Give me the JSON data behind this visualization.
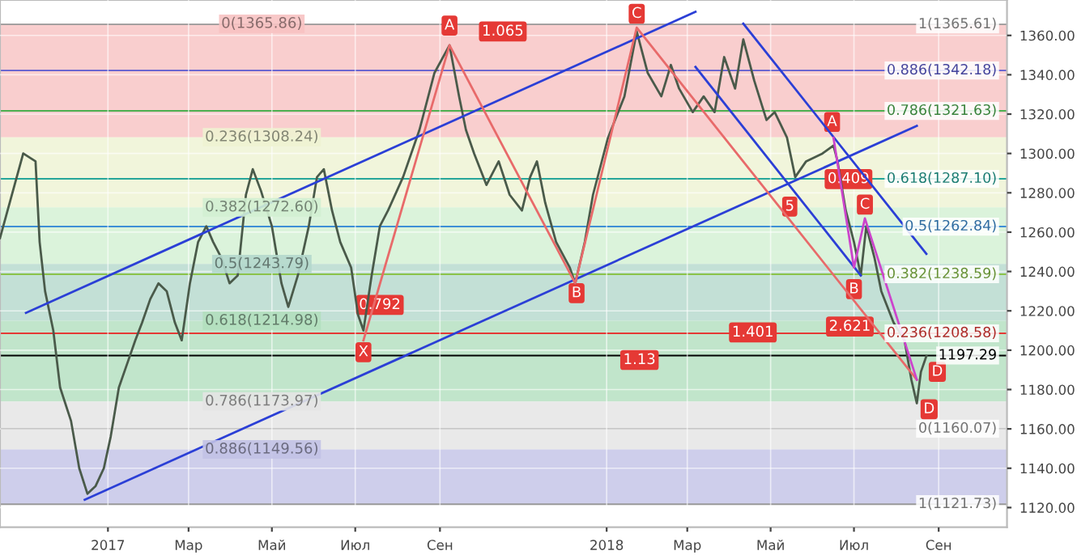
{
  "chart_data": {
    "type": "line",
    "series": [
      {
        "color": "#4a5a4a",
        "x": [
          "2016-10-14",
          "2016-10-31",
          "2016-11-09",
          "2016-11-12",
          "2016-11-16",
          "2016-11-22",
          "2016-11-27",
          "2016-12-05",
          "2016-12-11",
          "2016-12-17",
          "2016-12-23",
          "2016-12-29",
          "2017-01-03",
          "2017-01-09",
          "2017-01-15",
          "2017-01-21",
          "2017-01-26",
          "2017-02-01",
          "2017-02-07",
          "2017-02-13",
          "2017-02-19",
          "2017-02-24",
          "2017-03-02",
          "2017-03-08",
          "2017-03-14",
          "2017-03-19",
          "2017-03-25",
          "2017-03-31",
          "2017-04-06",
          "2017-04-12",
          "2017-04-17",
          "2017-04-23",
          "2017-05-01",
          "2017-05-08",
          "2017-05-13",
          "2017-05-20",
          "2017-05-28",
          "2017-06-03",
          "2017-06-08",
          "2017-06-14",
          "2017-06-20",
          "2017-06-28",
          "2017-07-03",
          "2017-07-07",
          "2017-07-13",
          "2017-07-19",
          "2017-07-25",
          "2017-08-05",
          "2017-08-17",
          "2017-08-28",
          "2017-09-08",
          "2017-09-15",
          "2017-09-20",
          "2017-09-26",
          "2017-10-05",
          "2017-10-14",
          "2017-10-22",
          "2017-10-31",
          "2017-11-06",
          "2017-11-11",
          "2017-11-17",
          "2017-11-25",
          "2017-12-05",
          "2017-12-09",
          "2017-12-16",
          "2017-12-22",
          "2018-01-02",
          "2018-01-14",
          "2018-01-23",
          "2018-01-31",
          "2018-02-10",
          "2018-02-17",
          "2018-02-23",
          "2018-03-05",
          "2018-03-13",
          "2018-03-21",
          "2018-03-28",
          "2018-04-05",
          "2018-04-11",
          "2018-04-19",
          "2018-04-28",
          "2018-05-04",
          "2018-05-13",
          "2018-05-19",
          "2018-05-27",
          "2018-06-08",
          "2018-06-16",
          "2018-06-19",
          "2018-06-25",
          "2018-07-01",
          "2018-07-06",
          "2018-07-10",
          "2018-07-16",
          "2018-07-21",
          "2018-07-30",
          "2018-08-07",
          "2018-08-12",
          "2018-08-16",
          "2018-08-19",
          "2018-08-23"
        ],
        "values": [
          1257,
          1300,
          1296,
          1255,
          1230,
          1210,
          1181,
          1164,
          1140,
          1127,
          1131,
          1140,
          1156,
          1181,
          1193,
          1205,
          1214,
          1226,
          1234,
          1230,
          1214,
          1205,
          1234,
          1255,
          1263,
          1255,
          1247,
          1234,
          1238,
          1279,
          1292,
          1281,
          1263,
          1234,
          1222,
          1238,
          1263,
          1288,
          1292,
          1271,
          1255,
          1242,
          1218,
          1210,
          1238,
          1263,
          1271,
          1288,
          1312,
          1341,
          1355,
          1329,
          1312,
          1300,
          1284,
          1296,
          1279,
          1271,
          1288,
          1296,
          1275,
          1255,
          1242,
          1234,
          1255,
          1279,
          1308,
          1329,
          1362,
          1341,
          1329,
          1345,
          1333,
          1321,
          1329,
          1321,
          1349,
          1333,
          1358,
          1337,
          1317,
          1321,
          1308,
          1288,
          1296,
          1300,
          1304,
          1296,
          1271,
          1255,
          1238,
          1263,
          1247,
          1230,
          1214,
          1205,
          1185,
          1173,
          1189,
          1197
        ]
      },
      {
        "color": "#2b3fd6",
        "x": [
          "2016-11-02",
          "2018-03-07"
        ],
        "values": [
          1219,
          1372
        ]
      },
      {
        "color": "#2b3fd6",
        "x": [
          "2016-12-15",
          "2018-08-16"
        ],
        "values": [
          1124,
          1314
        ]
      },
      {
        "color": "#2b3fd6",
        "x": [
          "2018-04-11",
          "2018-08-23"
        ],
        "values": [
          1366,
          1249
        ]
      },
      {
        "color": "#2b3fd6",
        "x": [
          "2018-03-07",
          "2018-07-06"
        ],
        "values": [
          1344,
          1238
        ]
      },
      {
        "color": "#e86a6a",
        "x": [
          "2017-07-07",
          "2017-09-08",
          "2017-12-09",
          "2018-01-23",
          "2018-08-16"
        ],
        "values": [
          1205,
          1355,
          1234,
          1364,
          1185
        ]
      },
      {
        "color": "#cc44cc",
        "x": [
          "2018-06-16",
          "2018-07-01",
          "2018-07-09",
          "2018-08-16"
        ],
        "values": [
          1308,
          1242,
          1267,
          1185
        ]
      }
    ],
    "xlim": [
      "2016-10-14",
      "2018-10-21"
    ],
    "xticks": [
      {
        "value": "2017-01-01",
        "label": "2017"
      },
      {
        "value": "2017-03-01",
        "label": "Мар"
      },
      {
        "value": "2017-05-01",
        "label": "Май"
      },
      {
        "value": "2017-07-01",
        "label": "Июл"
      },
      {
        "value": "2017-09-01",
        "label": "Сен"
      },
      {
        "value": "2018-01-01",
        "label": "2018"
      },
      {
        "value": "2018-03-01",
        "label": "Мар"
      },
      {
        "value": "2018-05-01",
        "label": "Май"
      },
      {
        "value": "2018-07-01",
        "label": "Июл"
      },
      {
        "value": "2018-09-01",
        "label": "Сен"
      }
    ],
    "ylim": [
      1110,
      1378
    ],
    "yticks": [
      {
        "value": 1120,
        "label": "1120.00"
      },
      {
        "value": 1140,
        "label": "1140.00"
      },
      {
        "value": 1160,
        "label": "1160.00"
      },
      {
        "value": 1180,
        "label": "1180.00"
      },
      {
        "value": 1200,
        "label": "1200.00"
      },
      {
        "value": 1220,
        "label": "1220.00"
      },
      {
        "value": 1240,
        "label": "1240.00"
      },
      {
        "value": 1260,
        "label": "1260.00"
      },
      {
        "value": 1280,
        "label": "1280.00"
      },
      {
        "value": 1300,
        "label": "1300.00"
      },
      {
        "value": 1320,
        "label": "1320.00"
      },
      {
        "value": 1340,
        "label": "1340.00"
      },
      {
        "value": 1360,
        "label": "1360.00"
      }
    ],
    "grid": true,
    "bands": [
      {
        "axis": "y",
        "from": 1308.24,
        "to": 1365.86,
        "label": "0(1365.86)",
        "color": "#f7c2c2"
      },
      {
        "axis": "y",
        "from": 1272.6,
        "to": 1308.24,
        "label": "0.236(1308.24)",
        "color": "#eef3d2"
      },
      {
        "axis": "y",
        "from": 1243.79,
        "to": 1272.6,
        "label": "0.382(1272.60)",
        "color": "#d2f0d2"
      },
      {
        "axis": "y",
        "from": 1214.98,
        "to": 1243.79,
        "label": "0.5(1243.79)",
        "color": "#b4d8cc"
      },
      {
        "axis": "y",
        "from": 1173.97,
        "to": 1214.98,
        "label": "0.618(1214.98)",
        "color": "#b2dfbe"
      },
      {
        "axis": "y",
        "from": 1149.56,
        "to": 1173.97,
        "label": "0.786(1173.97)",
        "color": "#e4e4e4"
      },
      {
        "axis": "y",
        "from": 1121.73,
        "to": 1149.56,
        "label": "0.886(1149.56)",
        "color": "#c2c2e6"
      }
    ],
    "ref_lines": [
      {
        "axis": "y",
        "value": 1121.73,
        "label": "1(1121.73)",
        "color": "#999999"
      },
      {
        "axis": "y",
        "value": 1365.61,
        "label": "1(1365.61)",
        "color": "#999999"
      },
      {
        "axis": "y",
        "value": 1342.18,
        "label": "0.886(1342.18)",
        "color": "#5a5ad0"
      },
      {
        "axis": "y",
        "value": 1321.63,
        "label": "0.786(1321.63)",
        "color": "#4caf50"
      },
      {
        "axis": "y",
        "value": 1287.1,
        "label": "0.618(1287.10)",
        "color": "#26a69a"
      },
      {
        "axis": "y",
        "value": 1262.84,
        "label": "0.5(1262.84)",
        "color": "#3d8fd6"
      },
      {
        "axis": "y",
        "value": 1238.59,
        "label": "0.382(1238.59)",
        "color": "#8bc34a"
      },
      {
        "axis": "y",
        "value": 1208.58,
        "label": "0.236(1208.58)",
        "color": "#e53935"
      },
      {
        "axis": "y",
        "value": 1160.07,
        "label": "0(1160.07)",
        "color": "#999999"
      },
      {
        "axis": "y",
        "value": 1197.29,
        "label": "1197.29",
        "color": "#000000"
      }
    ],
    "annotations": [
      {
        "text": "X",
        "x": "2017-07-07",
        "y": 1199
      },
      {
        "text": "A",
        "x": "2017-09-08",
        "y": 1365
      },
      {
        "text": "B",
        "x": "2017-12-10",
        "y": 1229
      },
      {
        "text": "C",
        "x": "2018-01-23",
        "y": 1371
      },
      {
        "text": "D",
        "x": "2018-08-25",
        "y": 1170
      },
      {
        "text": "1.065",
        "x": "2017-10-17",
        "y": 1362
      },
      {
        "text": "0.792",
        "x": "2017-07-19",
        "y": 1223
      },
      {
        "text": "1.401",
        "x": "2018-04-18",
        "y": 1209
      },
      {
        "text": "1.13",
        "x": "2018-01-25",
        "y": 1195
      },
      {
        "text": "A",
        "x": "2018-06-15",
        "y": 1316
      },
      {
        "text": "B",
        "x": "2018-07-01",
        "y": 1231
      },
      {
        "text": "C",
        "x": "2018-07-09",
        "y": 1274
      },
      {
        "text": "D",
        "x": "2018-08-31",
        "y": 1189
      },
      {
        "text": "0.409",
        "x": "2018-06-27",
        "y": 1287
      },
      {
        "text": "2.621",
        "x": "2018-06-28",
        "y": 1212
      },
      {
        "text": "5",
        "x": "2018-05-15",
        "y": 1273
      }
    ]
  }
}
